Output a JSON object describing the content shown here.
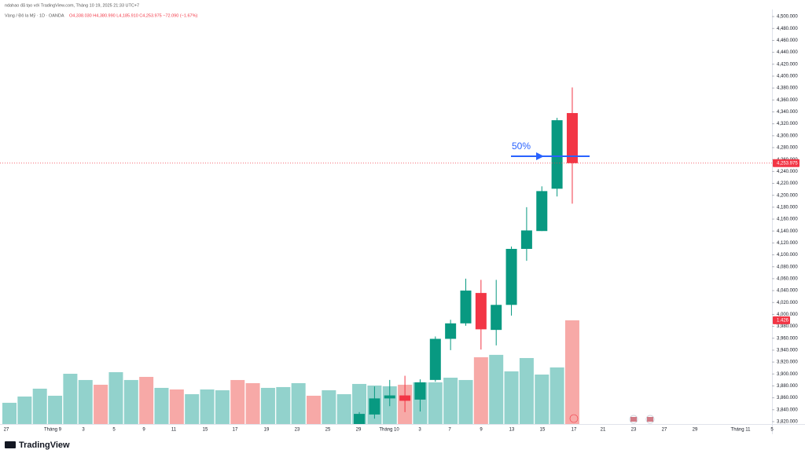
{
  "chart_data": {
    "type": "candlestick",
    "attribution": "ndahao đã tạo với TradingView.com, Tháng 10 19, 2025 21:33 UTC+7",
    "symbol": "Vàng / Đô la Mỹ · 1D · OANDA",
    "ohlc_text": "O4,338.030 H4,380.990 L4,185.910 C4,253.975 −72.090 (−1.67%)",
    "open": [
      null,
      null,
      null,
      null,
      null,
      null,
      null,
      null,
      null,
      null,
      null,
      null,
      null,
      null,
      null,
      null,
      null,
      null,
      null,
      null,
      null,
      null,
      null,
      3812,
      3832,
      3859,
      3864,
      3857,
      3890,
      3959,
      3985,
      4036,
      3974,
      4016,
      4110,
      4140,
      4211,
      4338.03
    ],
    "high": [
      null,
      null,
      null,
      null,
      null,
      null,
      null,
      null,
      null,
      null,
      null,
      null,
      null,
      null,
      null,
      null,
      null,
      null,
      null,
      null,
      null,
      null,
      null,
      3836,
      3879,
      3890,
      3897,
      3891,
      3963,
      3991,
      4060,
      4058,
      4058,
      4114,
      4180,
      4215,
      4330,
      4380.99
    ],
    "low": [
      null,
      null,
      null,
      null,
      null,
      null,
      null,
      null,
      null,
      null,
      null,
      null,
      null,
      null,
      null,
      null,
      null,
      null,
      null,
      null,
      null,
      null,
      null,
      3800,
      3825,
      3846,
      3836,
      3837,
      3887,
      3940,
      3981,
      3941,
      3948,
      3998,
      4090,
      4140,
      4198,
      4185.91
    ],
    "close": [
      null,
      null,
      null,
      null,
      null,
      null,
      null,
      null,
      null,
      null,
      null,
      null,
      null,
      null,
      null,
      null,
      null,
      null,
      null,
      null,
      null,
      null,
      null,
      3833,
      3859,
      3864,
      3855,
      3886,
      3959,
      3985,
      4040,
      3975,
      4016,
      4110,
      4141,
      4207,
      4326,
      4253.975
    ],
    "volume": [
      0.292,
      0.378,
      0.486,
      0.389,
      0.691,
      0.605,
      0.54,
      0.713,
      0.605,
      0.648,
      0.497,
      0.475,
      0.41,
      0.475,
      0.464,
      0.605,
      0.562,
      0.497,
      0.508,
      0.562,
      0.389,
      0.464,
      0.41,
      0.551,
      0.529,
      0.519,
      0.54,
      0.573,
      0.573,
      0.637,
      0.605,
      0.918,
      0.951,
      0.724,
      0.907,
      0.68,
      0.778,
      1.426
    ],
    "volume_colors": [
      "#92d2cc",
      "#92d2cc",
      "#92d2cc",
      "#92d2cc",
      "#92d2cc",
      "#92d2cc",
      "#f7a9a7",
      "#92d2cc",
      "#92d2cc",
      "#f7a9a7",
      "#92d2cc",
      "#f7a9a7",
      "#92d2cc",
      "#92d2cc",
      "#92d2cc",
      "#f7a9a7",
      "#f7a9a7",
      "#92d2cc",
      "#92d2cc",
      "#92d2cc",
      "#f7a9a7",
      "#92d2cc",
      "#92d2cc",
      "#92d2cc",
      "#92d2cc",
      "#92d2cc",
      "#f7a9a7",
      "#92d2cc",
      "#92d2cc",
      "#92d2cc",
      "#92d2cc",
      "#f7a9a7",
      "#92d2cc",
      "#92d2cc",
      "#92d2cc",
      "#92d2cc",
      "#92d2cc",
      "#f7a9a7"
    ],
    "up_color": "#089981",
    "down_color": "#f23645",
    "ylim": [
      3816,
      4512
    ],
    "volume_lim": [
      0,
      5.7
    ],
    "yticks": [
      {
        "value": 3820,
        "label": "3,820.000"
      },
      {
        "value": 3840,
        "label": "3,840.000"
      },
      {
        "value": 3860,
        "label": "3,860.000"
      },
      {
        "value": 3880,
        "label": "3,880.000"
      },
      {
        "value": 3900,
        "label": "3,900.000"
      },
      {
        "value": 3920,
        "label": "3,920.000"
      },
      {
        "value": 3940,
        "label": "3,940.000"
      },
      {
        "value": 3960,
        "label": "3,960.000"
      },
      {
        "value": 3980,
        "label": "3,980.000"
      },
      {
        "value": 4000,
        "label": "4,000.000"
      },
      {
        "value": 4020,
        "label": "4,020.000"
      },
      {
        "value": 4040,
        "label": "4,040.000"
      },
      {
        "value": 4060,
        "label": "4,060.000"
      },
      {
        "value": 4080,
        "label": "4,080.000"
      },
      {
        "value": 4100,
        "label": "4,100.000"
      },
      {
        "value": 4120,
        "label": "4,120.000"
      },
      {
        "value": 4140,
        "label": "4,140.000"
      },
      {
        "value": 4160,
        "label": "4,160.000"
      },
      {
        "value": 4180,
        "label": "4,180.000"
      },
      {
        "value": 4200,
        "label": "4,200.000"
      },
      {
        "value": 4220,
        "label": "4,220.000"
      },
      {
        "value": 4240,
        "label": "4,240.000"
      },
      {
        "value": 4260,
        "label": "4,260.000"
      },
      {
        "value": 4280,
        "label": "4,280.000"
      },
      {
        "value": 4300,
        "label": "4,300.000"
      },
      {
        "value": 4320,
        "label": "4,320.000"
      },
      {
        "value": 4340,
        "label": "4,340.000"
      },
      {
        "value": 4360,
        "label": "4,360.000"
      },
      {
        "value": 4380,
        "label": "4,380.000"
      },
      {
        "value": 4400,
        "label": "4,400.000"
      },
      {
        "value": 4420,
        "label": "4,420.000"
      },
      {
        "value": 4440,
        "label": "4,440.000"
      },
      {
        "value": 4460,
        "label": "4,460.000"
      },
      {
        "value": 4480,
        "label": "4,480.000"
      },
      {
        "value": 4500,
        "label": "4,500.000"
      }
    ],
    "last_price": {
      "value": 4253.975,
      "label": "4,253.975"
    },
    "last_volume": {
      "value": 1.426,
      "label": "1.426"
    },
    "annotation": "50%",
    "x_labels": [
      "27",
      "Tháng 9",
      "3",
      "5",
      "9",
      "11",
      "15",
      "17",
      "19",
      "23",
      "25",
      "29",
      "Tháng 10",
      "3",
      "7",
      "9",
      "13",
      "15",
      "17",
      "21",
      "23",
      "27",
      "29",
      "Tháng 11",
      "5"
    ],
    "branding": "TradingView"
  }
}
